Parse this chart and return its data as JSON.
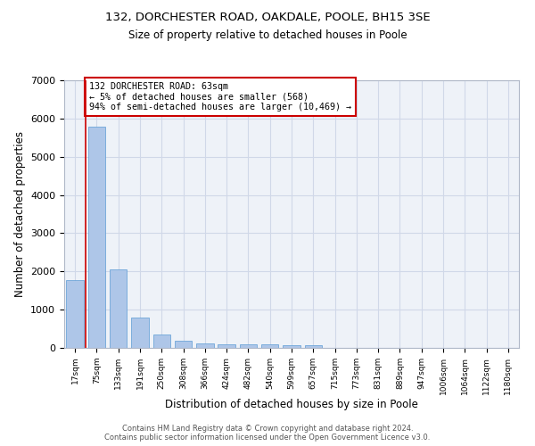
{
  "title_line1": "132, DORCHESTER ROAD, OAKDALE, POOLE, BH15 3SE",
  "title_line2": "Size of property relative to detached houses in Poole",
  "xlabel": "Distribution of detached houses by size in Poole",
  "ylabel": "Number of detached properties",
  "bar_color": "#aec6e8",
  "bar_edge_color": "#5b9bd5",
  "categories": [
    "17sqm",
    "75sqm",
    "133sqm",
    "191sqm",
    "250sqm",
    "308sqm",
    "366sqm",
    "424sqm",
    "482sqm",
    "540sqm",
    "599sqm",
    "657sqm",
    "715sqm",
    "773sqm",
    "831sqm",
    "889sqm",
    "947sqm",
    "1006sqm",
    "1064sqm",
    "1122sqm",
    "1180sqm"
  ],
  "values": [
    1780,
    5780,
    2060,
    790,
    340,
    195,
    120,
    105,
    95,
    85,
    75,
    65,
    0,
    0,
    0,
    0,
    0,
    0,
    0,
    0,
    0
  ],
  "ylim": [
    0,
    7000
  ],
  "yticks": [
    0,
    1000,
    2000,
    3000,
    4000,
    5000,
    6000,
    7000
  ],
  "property_line_x": 0.5,
  "annotation_text": "132 DORCHESTER ROAD: 63sqm\n← 5% of detached houses are smaller (568)\n94% of semi-detached houses are larger (10,469) →",
  "annotation_box_color": "#ffffff",
  "annotation_box_edge_color": "#cc0000",
  "grid_color": "#d0d8e8",
  "background_color": "#eef2f8",
  "footer_line1": "Contains HM Land Registry data © Crown copyright and database right 2024.",
  "footer_line2": "Contains public sector information licensed under the Open Government Licence v3.0."
}
